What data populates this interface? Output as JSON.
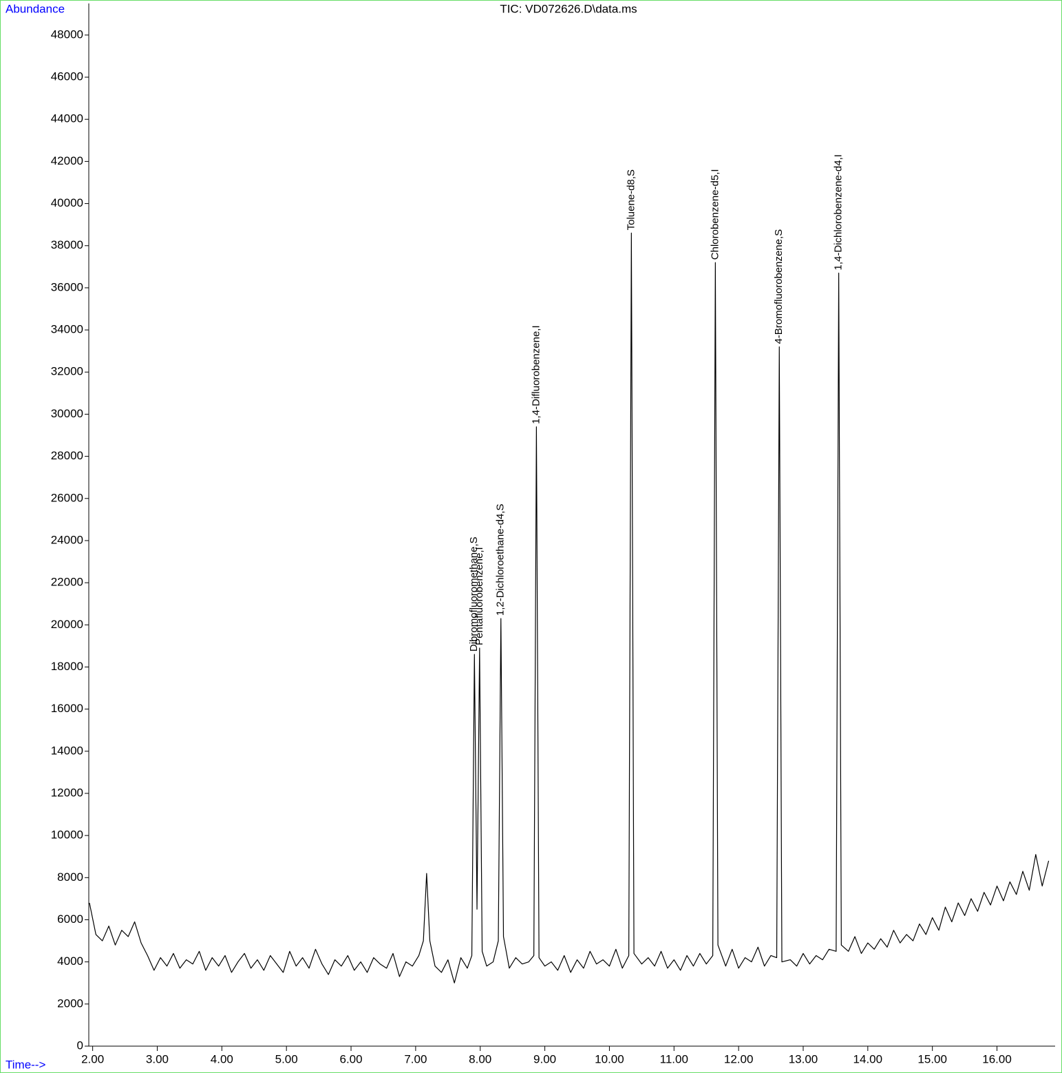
{
  "chart_data": {
    "type": "line",
    "title": "TIC: VD072626.D\\data.ms",
    "y_label": "Abundance",
    "x_label": "Time-->",
    "xlim": [
      1.94,
      16.9
    ],
    "ylim": [
      0,
      49500
    ],
    "xticks": [
      {
        "value": 2,
        "label": "2.00"
      },
      {
        "value": 3,
        "label": "3.00"
      },
      {
        "value": 4,
        "label": "4.00"
      },
      {
        "value": 5,
        "label": "5.00"
      },
      {
        "value": 6,
        "label": "6.00"
      },
      {
        "value": 7,
        "label": "7.00"
      },
      {
        "value": 8,
        "label": "8.00"
      },
      {
        "value": 9,
        "label": "9.00"
      },
      {
        "value": 10,
        "label": "10.00"
      },
      {
        "value": 11,
        "label": "11.00"
      },
      {
        "value": 12,
        "label": "12.00"
      },
      {
        "value": 13,
        "label": "13.00"
      },
      {
        "value": 14,
        "label": "14.00"
      },
      {
        "value": 15,
        "label": "15.00"
      },
      {
        "value": 16,
        "label": "16.00"
      }
    ],
    "yticks": [
      0,
      2000,
      4000,
      6000,
      8000,
      10000,
      12000,
      14000,
      16000,
      18000,
      20000,
      22000,
      24000,
      26000,
      28000,
      30000,
      32000,
      34000,
      36000,
      38000,
      40000,
      42000,
      44000,
      46000,
      48000
    ],
    "color": "#000000",
    "x": [
      1.95,
      2.05,
      2.15,
      2.25,
      2.35,
      2.45,
      2.55,
      2.65,
      2.75,
      2.85,
      2.95,
      3.05,
      3.15,
      3.25,
      3.35,
      3.45,
      3.55,
      3.65,
      3.75,
      3.85,
      3.95,
      4.05,
      4.15,
      4.25,
      4.35,
      4.45,
      4.55,
      4.65,
      4.75,
      4.85,
      4.95,
      5.05,
      5.15,
      5.25,
      5.35,
      5.45,
      5.55,
      5.65,
      5.75,
      5.85,
      5.95,
      6.05,
      6.15,
      6.25,
      6.35,
      6.45,
      6.55,
      6.65,
      6.75,
      6.85,
      6.95,
      7.05,
      7.12,
      7.17,
      7.22,
      7.3,
      7.4,
      7.5,
      7.6,
      7.7,
      7.8,
      7.87,
      7.91,
      7.95,
      7.99,
      8.03,
      8.1,
      8.2,
      8.28,
      8.32,
      8.36,
      8.45,
      8.55,
      8.65,
      8.75,
      8.83,
      8.87,
      8.91,
      9.0,
      9.1,
      9.2,
      9.3,
      9.4,
      9.5,
      9.6,
      9.7,
      9.8,
      9.9,
      10.0,
      10.1,
      10.2,
      10.3,
      10.34,
      10.38,
      10.5,
      10.6,
      10.7,
      10.8,
      10.9,
      11.0,
      11.1,
      11.2,
      11.3,
      11.4,
      11.5,
      11.6,
      11.64,
      11.68,
      11.8,
      11.9,
      12.0,
      12.1,
      12.2,
      12.3,
      12.4,
      12.5,
      12.59,
      12.63,
      12.67,
      12.8,
      12.9,
      13.0,
      13.1,
      13.2,
      13.3,
      13.4,
      13.51,
      13.55,
      13.59,
      13.7,
      13.8,
      13.9,
      14.0,
      14.1,
      14.2,
      14.3,
      14.4,
      14.5,
      14.6,
      14.7,
      14.8,
      14.9,
      15.0,
      15.1,
      15.2,
      15.3,
      15.4,
      15.5,
      15.6,
      15.7,
      15.8,
      15.9,
      16.0,
      16.1,
      16.2,
      16.3,
      16.4,
      16.5,
      16.6,
      16.7,
      16.8
    ],
    "values": [
      6800,
      5300,
      5000,
      5700,
      4800,
      5500,
      5200,
      5900,
      4900,
      4300,
      3600,
      4200,
      3800,
      4400,
      3700,
      4100,
      3900,
      4500,
      3600,
      4200,
      3800,
      4300,
      3500,
      4000,
      4400,
      3700,
      4100,
      3600,
      4300,
      3900,
      3500,
      4500,
      3800,
      4200,
      3700,
      4600,
      3900,
      3400,
      4100,
      3800,
      4300,
      3600,
      4000,
      3500,
      4200,
      3900,
      3700,
      4400,
      3300,
      4000,
      3800,
      4300,
      5000,
      8200,
      5000,
      3800,
      3500,
      4100,
      3000,
      4200,
      3700,
      4300,
      18600,
      6500,
      18900,
      4500,
      3800,
      4000,
      5000,
      20300,
      5200,
      3700,
      4200,
      3900,
      4000,
      4300,
      29400,
      4200,
      3800,
      4000,
      3600,
      4300,
      3500,
      4100,
      3700,
      4500,
      3900,
      4100,
      3800,
      4600,
      3700,
      4300,
      38600,
      4400,
      3900,
      4200,
      3800,
      4500,
      3700,
      4100,
      3600,
      4300,
      3800,
      4400,
      3900,
      4300,
      37200,
      4800,
      3800,
      4600,
      3700,
      4200,
      4000,
      4700,
      3800,
      4300,
      4200,
      33200,
      4000,
      4100,
      3800,
      4400,
      3900,
      4300,
      4100,
      4600,
      4500,
      36700,
      4800,
      4500,
      5200,
      4400,
      4900,
      4600,
      5100,
      4700,
      5500,
      4900,
      5300,
      5000,
      5800,
      5300,
      6100,
      5500,
      6600,
      5900,
      6800,
      6200,
      7000,
      6400,
      7300,
      6700,
      7600,
      6900,
      7800,
      7200,
      8300,
      7400,
      9100,
      7600,
      8800
    ],
    "annotations": [
      {
        "text": "Dibromofluoromethane,S",
        "x": 7.91,
        "y": 18600
      },
      {
        "text": "Pentafluorobenzene,I",
        "x": 7.99,
        "y": 18900
      },
      {
        "text": "1,2-Dichloroethane-d4,S",
        "x": 8.32,
        "y": 20300
      },
      {
        "text": "1,4-Difluorobenzene,I",
        "x": 8.87,
        "y": 29400
      },
      {
        "text": "Toluene-d8,S",
        "x": 10.34,
        "y": 38600
      },
      {
        "text": "Chlorobenzene-d5,I",
        "x": 11.64,
        "y": 37200
      },
      {
        "text": "4-Bromofluorobenzene,S",
        "x": 12.63,
        "y": 33200
      },
      {
        "text": "1,4-Dichlorobenzene-d4,I",
        "x": 13.55,
        "y": 36700
      }
    ]
  }
}
